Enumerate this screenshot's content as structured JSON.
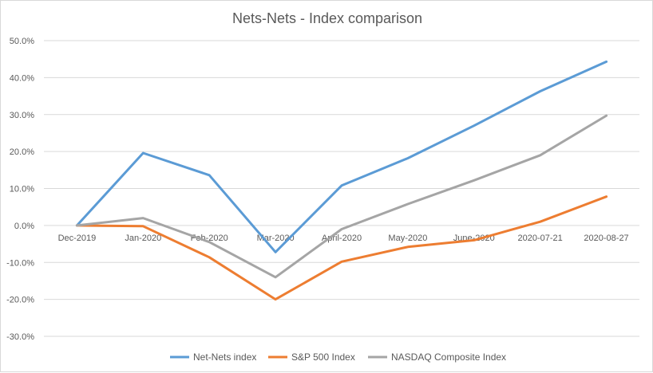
{
  "chart_data": {
    "type": "line",
    "title": "Nets-Nets - Index comparison",
    "xlabel": "",
    "ylabel": "",
    "categories": [
      "Dec-2019",
      "Jan-2020",
      "Feb-2020",
      "Mar-2020",
      "April-2020",
      "May-2020",
      "June-2020",
      "2020-07-21",
      "2020-08-27"
    ],
    "y_ticks": [
      "-30.0%",
      "-20.0%",
      "-10.0%",
      "0.0%",
      "10.0%",
      "20.0%",
      "30.0%",
      "40.0%",
      "50.0%"
    ],
    "ylim": [
      -30,
      50
    ],
    "y_unit": "percent",
    "grid": "horizontal",
    "legend_position": "bottom",
    "series": [
      {
        "name": "Net-Nets index",
        "color": "#5B9BD5",
        "values": [
          0.0,
          19.6,
          13.6,
          -7.2,
          10.8,
          18.2,
          27.0,
          36.3,
          44.3
        ]
      },
      {
        "name": "S&P 500 Index",
        "color": "#ED7D31",
        "values": [
          0.0,
          -0.2,
          -8.6,
          -20.0,
          -9.8,
          -5.8,
          -4.0,
          1.0,
          7.8
        ]
      },
      {
        "name": "NASDAQ Composite Index",
        "color": "#A5A5A5",
        "values": [
          0.0,
          2.0,
          -4.5,
          -14.0,
          -1.0,
          5.8,
          12.2,
          19.0,
          29.7
        ]
      }
    ]
  }
}
